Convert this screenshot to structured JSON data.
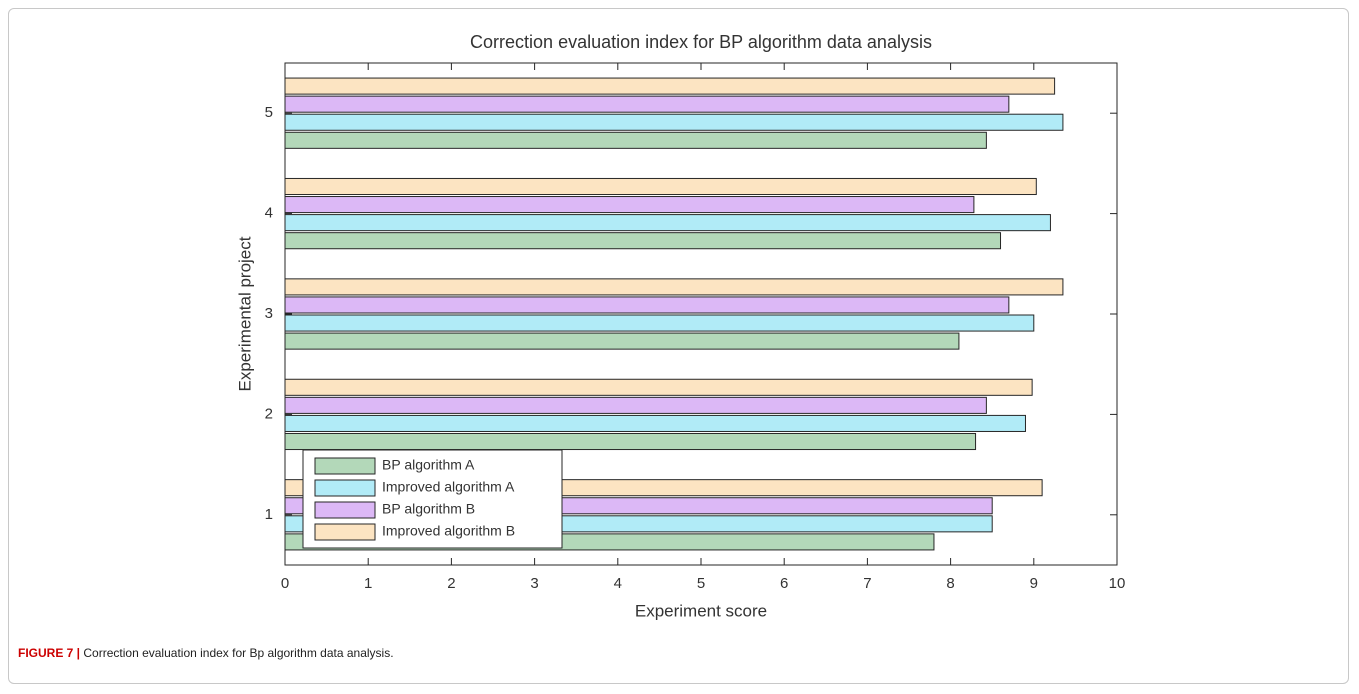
{
  "chart_data": {
    "type": "barh",
    "title": "Correction evaluation index for BP algorithm data analysis",
    "xlabel": "Experiment score",
    "ylabel": "Experimental project",
    "categories": [
      "1",
      "2",
      "3",
      "4",
      "5"
    ],
    "series": [
      {
        "name": "BP algorithm A",
        "color": "#b3d8b9",
        "values": [
          7.8,
          8.3,
          8.1,
          8.6,
          8.43
        ]
      },
      {
        "name": "Improved algorithm A",
        "color": "#b1ebf7",
        "values": [
          8.5,
          8.9,
          9.0,
          9.2,
          9.35
        ]
      },
      {
        "name": "BP algorithm B",
        "color": "#dcb8f6",
        "values": [
          8.5,
          8.43,
          8.7,
          8.28,
          8.7
        ]
      },
      {
        "name": "Improved algorithm B",
        "color": "#fce4c2",
        "values": [
          9.1,
          8.98,
          9.35,
          9.03,
          9.25
        ]
      }
    ],
    "xlim": [
      0,
      10
    ],
    "xticks": [
      0,
      1,
      2,
      3,
      4,
      5,
      6,
      7,
      8,
      9,
      10
    ],
    "legend": "lower left"
  },
  "figure": {
    "label": "FIGURE 7 |",
    "caption": "Correction evaluation index for Bp algorithm data analysis."
  }
}
